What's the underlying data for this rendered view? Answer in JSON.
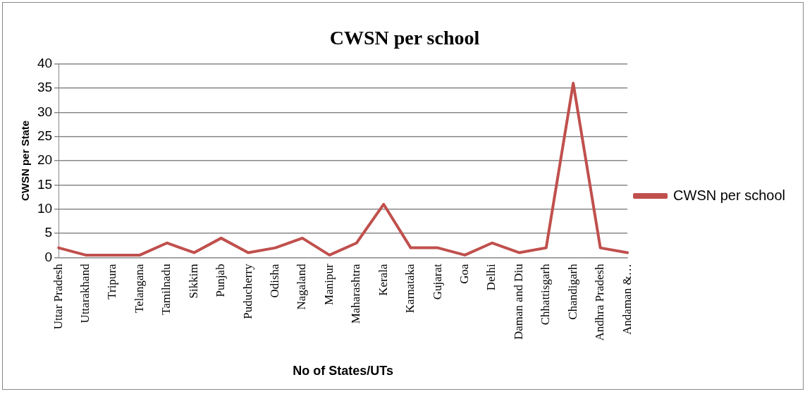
{
  "chart_data": {
    "type": "line",
    "title": "CWSN per school",
    "xlabel": "No of States/UTs",
    "ylabel": "CWSN per State",
    "categories": [
      "Uttar Pradesh",
      "Uttarakhand",
      "Tripura",
      "Telangana",
      "Tamilnadu",
      "Sikkim",
      "Punjab",
      "Puducherry",
      "Odisha",
      "Nagaland",
      "Manipur",
      "Maharashtra",
      "Kerala",
      "Karnataka",
      "Gujarat",
      "Goa",
      "Delhi",
      "Daman and Diu",
      "Chhattisgarh",
      "Chandigarh",
      "Andhra Pradesh",
      "Andaman &…"
    ],
    "series": [
      {
        "name": "CWSN per school",
        "color": "#c0504d",
        "values": [
          2,
          0.5,
          0.5,
          0.5,
          3,
          1,
          4,
          1,
          2,
          4,
          0.5,
          3,
          11,
          2,
          2,
          0.5,
          3,
          1,
          2,
          36,
          2,
          1
        ]
      }
    ],
    "ylim": [
      0,
      40
    ],
    "yticks": [
      0,
      5,
      10,
      15,
      20,
      25,
      30,
      35,
      40
    ],
    "grid": "y",
    "legend": "right",
    "marker": "none",
    "line_style": "solid"
  }
}
